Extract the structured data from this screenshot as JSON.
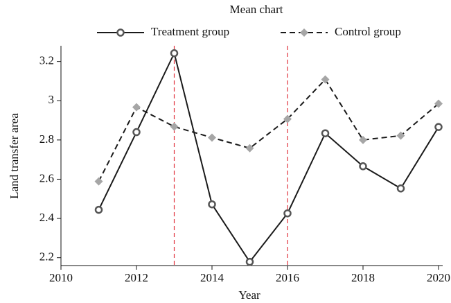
{
  "chart_data": {
    "type": "line",
    "title": "Mean chart",
    "x_label": "Year",
    "y_label": "Land transfer area",
    "x": [
      2011,
      2012,
      2013,
      2014,
      2015,
      2016,
      2017,
      2018,
      2019,
      2020
    ],
    "series": [
      {
        "name": "Treatment group",
        "color": "#1a1a1a",
        "marker": "circle",
        "dash": "solid",
        "values": [
          2.444,
          2.84,
          3.242,
          2.472,
          2.179,
          2.426,
          2.834,
          2.666,
          2.553,
          2.866
        ]
      },
      {
        "name": "Control group",
        "color": "#1a1a1a",
        "marker_color": "#a6a6a6",
        "marker": "diamond",
        "dash": "dashed",
        "values": [
          2.589,
          2.967,
          2.868,
          2.812,
          2.758,
          2.907,
          3.108,
          2.8,
          2.822,
          2.985
        ]
      }
    ],
    "vlines": [
      2013,
      2016
    ],
    "vline_color": "#e0303a",
    "xlim": [
      2010,
      2020
    ],
    "xticks": [
      2010,
      2012,
      2014,
      2016,
      2018,
      2020
    ],
    "ylim": [
      2.16,
      3.28
    ],
    "yticks": [
      2.2,
      2.4,
      2.6,
      2.8,
      3,
      3.2
    ],
    "legend": "top"
  }
}
